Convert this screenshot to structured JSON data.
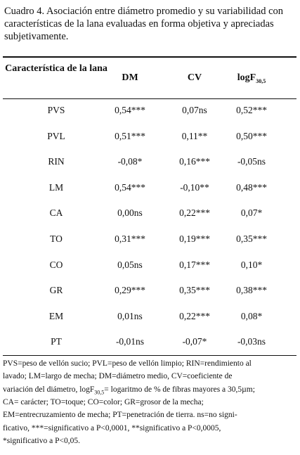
{
  "caption": {
    "lines": [
      "Cuadro 4. Asociación entre diámetro promedio y su variabilidad con",
      "características de la lana evaluadas en forma objetiva y apreciadas",
      "subjetivamente."
    ]
  },
  "table": {
    "header": [
      "Característica de la lana",
      "DM",
      "CV",
      {
        "text": "logF",
        "sub": "30,5"
      }
    ],
    "rows": [
      [
        "PVS",
        "0,54***",
        "0,07ns",
        "0,52***"
      ],
      [
        "PVL",
        "0,51***",
        "0,11**",
        "0,50***"
      ],
      [
        "RIN",
        "-0,08*",
        "0,16***",
        "-0,05ns"
      ],
      [
        "LM",
        "0,54***",
        "-0,10**",
        "0,48***"
      ],
      [
        "CA",
        "0,00ns",
        "0,22***",
        "0,07*"
      ],
      [
        "TO",
        "0,31***",
        "0,19***",
        "0,35***"
      ],
      [
        "CO",
        "0,05ns",
        "0,17***",
        "0,10*"
      ],
      [
        "GR",
        "0,29***",
        "0,35***",
        "0,38***"
      ],
      [
        "EM",
        "0,01ns",
        "0,22***",
        "0,08*"
      ],
      [
        "PT",
        "-0,01ns",
        "-0,07*",
        "-0,03ns"
      ]
    ]
  },
  "footnote": {
    "lines": [
      "PVS=peso de vellón sucio; PVL=peso de vellón limpio; RIN=rendimiento al",
      "lavado; LM=largo de mecha; DM=diámetro  medio, CV=coeficiente de",
      {
        "before": "variación del diámetro, logF",
        "sub": "30,5",
        "after": "= logaritmo de % de fibras  mayores a 30,5µm;"
      },
      "CA= carácter; TO=toque; CO=color; GR=grosor de la mecha;",
      "EM=entrecruzamiento de mecha; PT=penetración de tierra. ns=no signi-",
      "ficativo, ***=significativo a P<0,0001, **significativo a P<0,0005,",
      "*significativo a P<0,05."
    ]
  }
}
